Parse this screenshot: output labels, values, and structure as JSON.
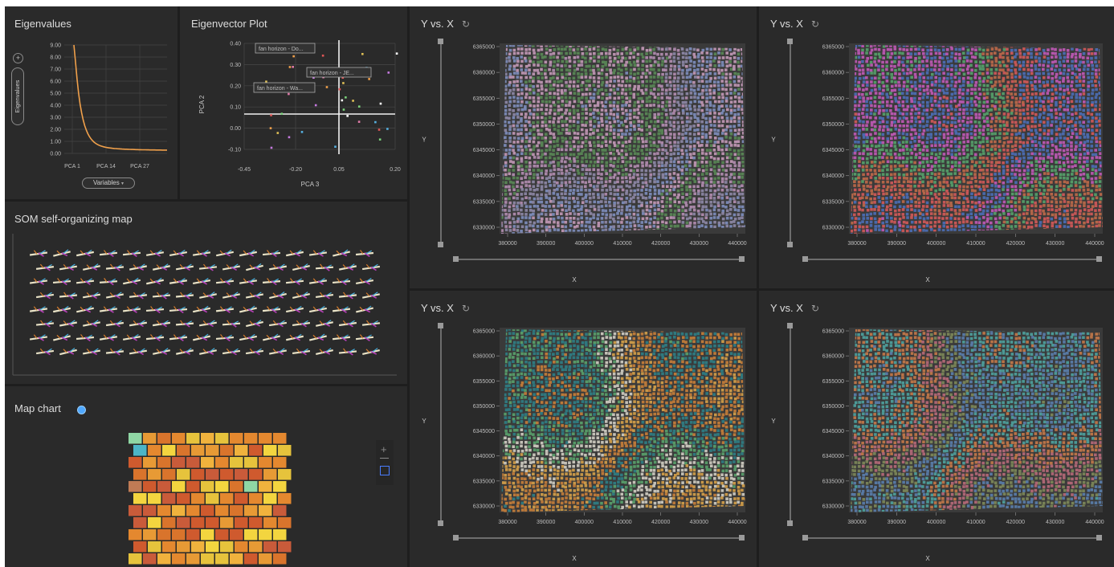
{
  "eigenvalues": {
    "title": "Eigenvalues",
    "y_ticks": [
      "9.00",
      "8.00",
      "7.00",
      "6.00",
      "5.00",
      "4.00",
      "3.00",
      "2.00",
      "1.00",
      "0.00"
    ],
    "x_ticks": [
      "PCA 1",
      "PCA 14",
      "PCA 27"
    ],
    "vertical_pill": "Eigenvalues",
    "plus_icon": "+",
    "dropdown_label": "Variables",
    "line_color": "#f0a04b"
  },
  "eigenvector": {
    "title": "Eigenvector Plot",
    "y_ticks": [
      "0.40",
      "0.30",
      "0.20",
      "0.10",
      "0.00",
      "-0.10"
    ],
    "x_ticks": [
      "-0.45",
      "-0.20",
      "0.05",
      "0.20"
    ],
    "xlabel": "PCA 3",
    "ylabel": "PCA 2",
    "tooltips": [
      "fan horizon - Do...",
      "fan horizon - JE...",
      "fan horizon - Wa..."
    ]
  },
  "som": {
    "title": "SOM self-organizing map"
  },
  "mapchart": {
    "title": "Map chart"
  },
  "scatter_panels": [
    {
      "title": "Y vs. X",
      "xlabel": "X",
      "ylabel": "Y",
      "y_ticks": [
        "6365000",
        "6360000",
        "6355000",
        "6350000",
        "6345000",
        "6340000",
        "6335000",
        "6330000"
      ],
      "x_ticks": [
        "380000",
        "390000",
        "400000",
        "410000",
        "420000",
        "430000",
        "440000"
      ],
      "colors": [
        "#b58fb2",
        "#8f8aa8",
        "#7f8fbf",
        "#c49ab8",
        "#5a8a56"
      ]
    },
    {
      "title": "Y vs. X",
      "xlabel": "X",
      "ylabel": "Y",
      "y_ticks": [
        "6365000",
        "6360000",
        "6355000",
        "6350000",
        "6345000",
        "6340000",
        "6335000",
        "6330000"
      ],
      "x_ticks": [
        "380000",
        "390000",
        "400000",
        "410000",
        "420000",
        "430000",
        "440000"
      ],
      "colors": [
        "#c06a4a",
        "#d45a5a",
        "#4c6fb8",
        "#c25ab8",
        "#57a36b"
      ]
    },
    {
      "title": "Y vs. X",
      "xlabel": "X",
      "ylabel": "Y",
      "y_ticks": [
        "6365000",
        "6360000",
        "6355000",
        "6350000",
        "6345000",
        "6340000",
        "6335000",
        "6330000"
      ],
      "x_ticks": [
        "380000",
        "390000",
        "400000",
        "410000",
        "420000",
        "430000",
        "440000"
      ],
      "colors": [
        "#d7a24a",
        "#c9803a",
        "#2f7f86",
        "#5aa36d",
        "#d3cfc4"
      ]
    },
    {
      "title": "Y vs. X",
      "xlabel": "X",
      "ylabel": "Y",
      "y_ticks": [
        "6365000",
        "6360000",
        "6355000",
        "6350000",
        "6345000",
        "6340000",
        "6335000",
        "6330000"
      ],
      "x_ticks": [
        "380000",
        "390000",
        "400000",
        "410000",
        "420000",
        "430000",
        "440000"
      ],
      "colors": [
        "#5b7fae",
        "#4fa3a0",
        "#c77a4a",
        "#b86a7a",
        "#7e8a5a"
      ]
    }
  ]
}
